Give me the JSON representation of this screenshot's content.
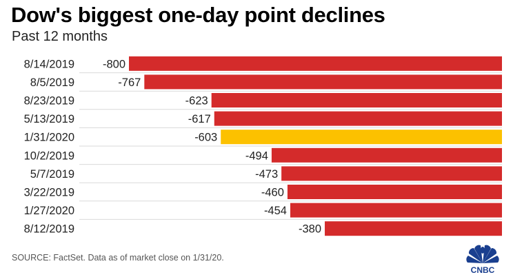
{
  "chart_data": {
    "type": "bar",
    "orientation": "horizontal",
    "title": "Dow's biggest one-day point declines",
    "subtitle": "Past 12 months",
    "categories": [
      "8/14/2019",
      "8/5/2019",
      "8/23/2019",
      "5/13/2019",
      "1/31/2020",
      "10/2/2019",
      "5/7/2019",
      "3/22/2019",
      "1/27/2020",
      "8/12/2019"
    ],
    "values": [
      -800,
      -767,
      -623,
      -617,
      -603,
      -494,
      -473,
      -460,
      -454,
      -380
    ],
    "value_labels": [
      "-800",
      "-767",
      "-623",
      "-617",
      "-603",
      "-494",
      "-473",
      "-460",
      "-454",
      "-380"
    ],
    "xlim": [
      -900,
      0
    ],
    "highlight_index": 4,
    "colors": {
      "default": "#d42b2b",
      "highlight": "#fcc100"
    },
    "grid": false,
    "legend": "none"
  },
  "footer": {
    "source": "SOURCE: FactSet. Data as of market close on 1/31/20.",
    "logo_text": "CNBC"
  },
  "colors": {
    "bar": "#d42b2b",
    "highlight": "#fcc100",
    "separator": "#d9d9d9"
  }
}
